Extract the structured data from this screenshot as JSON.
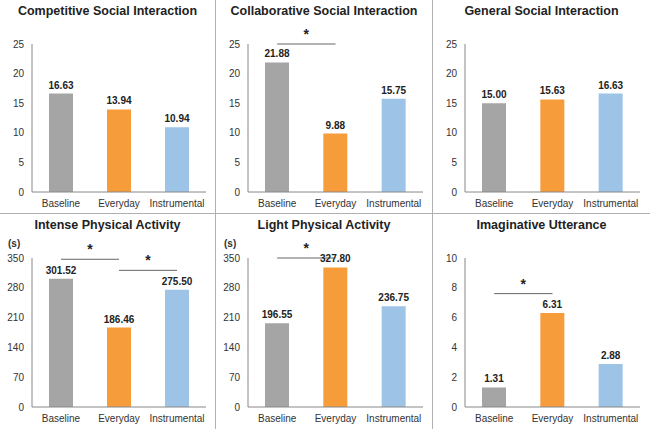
{
  "chart_data": [
    {
      "type": "bar",
      "title": "Competitive Social Interaction",
      "categories": [
        "Baseline",
        "Everyday",
        "Instrumental"
      ],
      "values": [
        16.63,
        13.94,
        10.94
      ],
      "colors": [
        "#a5a5a5",
        "#f79c3b",
        "#9dc3e6"
      ],
      "ylim": [
        0,
        25
      ],
      "yticks": [
        0,
        5,
        10,
        15,
        20,
        25
      ],
      "data_labels": true
    },
    {
      "type": "bar",
      "title": "Collaborative Social Interaction",
      "categories": [
        "Baseline",
        "Everyday",
        "Instrumental"
      ],
      "values": [
        21.88,
        9.88,
        15.75
      ],
      "colors": [
        "#a5a5a5",
        "#f79c3b",
        "#9dc3e6"
      ],
      "ylim": [
        0,
        25
      ],
      "yticks": [
        0,
        5,
        10,
        15,
        20,
        25
      ],
      "data_labels": true,
      "annotations": [
        {
          "text": "*",
          "from": "Baseline",
          "to": "Everyday"
        }
      ]
    },
    {
      "type": "bar",
      "title": "General Social Interaction",
      "categories": [
        "Baseline",
        "Everyday",
        "Instrumental"
      ],
      "values": [
        15.0,
        15.63,
        16.63
      ],
      "value_labels": [
        "15.00",
        "15.63",
        "16.63"
      ],
      "colors": [
        "#a5a5a5",
        "#f79c3b",
        "#9dc3e6"
      ],
      "ylim": [
        0,
        25
      ],
      "yticks": [
        0,
        5,
        10,
        15,
        20,
        25
      ],
      "data_labels": true
    },
    {
      "type": "bar",
      "title": "Intense Physical Activity",
      "ylabel": "(s)",
      "categories": [
        "Baseline",
        "Everyday",
        "Instrumental"
      ],
      "values": [
        301.52,
        186.46,
        275.5
      ],
      "value_labels": [
        "301.52",
        "186.46",
        "275.50"
      ],
      "colors": [
        "#a5a5a5",
        "#f79c3b",
        "#9dc3e6"
      ],
      "ylim": [
        0,
        350
      ],
      "yticks": [
        0,
        70,
        140,
        210,
        280,
        350
      ],
      "data_labels": true,
      "annotations": [
        {
          "text": "*",
          "from": "Baseline",
          "to": "Everyday"
        },
        {
          "text": "*",
          "from": "Everyday",
          "to": "Instrumental"
        }
      ]
    },
    {
      "type": "bar",
      "title": "Light Physical Activity",
      "ylabel": "(s)",
      "categories": [
        "Baseline",
        "Everyday",
        "Instrumental"
      ],
      "values": [
        196.55,
        327.8,
        236.75
      ],
      "value_labels": [
        "196.55",
        "327.80",
        "236.75"
      ],
      "colors": [
        "#a5a5a5",
        "#f79c3b",
        "#9dc3e6"
      ],
      "ylim": [
        0,
        350
      ],
      "yticks": [
        0,
        70,
        140,
        210,
        280,
        350
      ],
      "data_labels": true,
      "annotations": [
        {
          "text": "*",
          "from": "Baseline",
          "to": "Everyday"
        }
      ]
    },
    {
      "type": "bar",
      "title": "Imaginative Utterance",
      "categories": [
        "Baseline",
        "Everyday",
        "Instrumental"
      ],
      "values": [
        1.31,
        6.31,
        2.88
      ],
      "colors": [
        "#a5a5a5",
        "#f79c3b",
        "#9dc3e6"
      ],
      "ylim": [
        0,
        10
      ],
      "yticks": [
        0,
        2,
        4,
        6,
        8,
        10
      ],
      "data_labels": true,
      "annotations": [
        {
          "text": "*",
          "from": "Baseline",
          "to": "Everyday"
        }
      ]
    }
  ]
}
